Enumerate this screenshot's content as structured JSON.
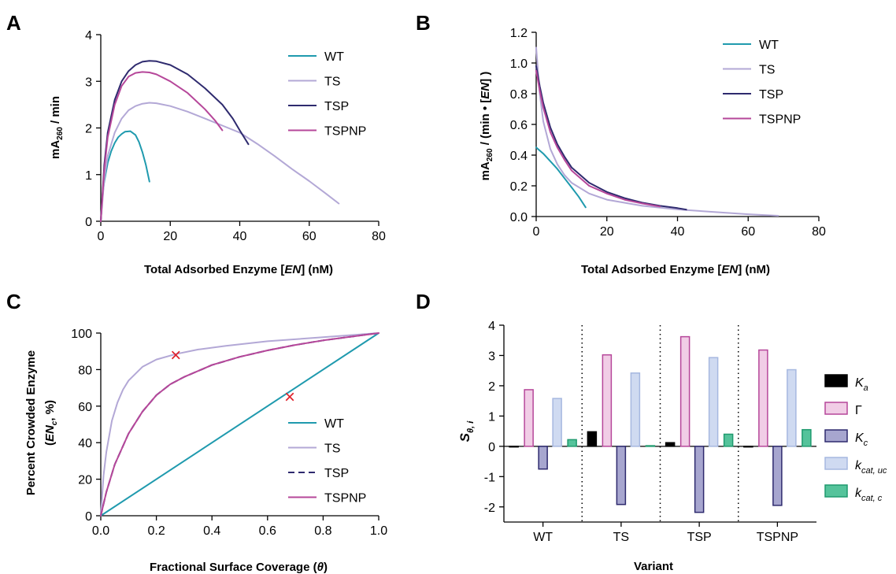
{
  "panels": {
    "A": {
      "letter": "A"
    },
    "B": {
      "letter": "B"
    },
    "C": {
      "letter": "C"
    },
    "D": {
      "letter": "D"
    }
  },
  "colors": {
    "WT": "#1f9aae",
    "TS": "#b3a8d6",
    "TSP": "#2e2a6e",
    "TSPNP": "#b6479a",
    "marker": "#e0202a",
    "Ka": "#000000",
    "Gamma": "#b6479a",
    "Kc": "#2e2a6e",
    "kcat_uc": "#a6b8e0",
    "kcat_c": "#1f9a6e"
  },
  "chart_data": [
    {
      "panel": "A",
      "type": "line",
      "xlabel": "Total Adsorbed Enzyme [EN] (nM)",
      "ylabel": "mA260 / min",
      "xlim": [
        0,
        80
      ],
      "ylim": [
        0,
        4
      ],
      "xticks": [
        0,
        20,
        40,
        60,
        80
      ],
      "yticks": [
        0,
        1,
        2,
        3,
        4
      ],
      "legend_position": "top-right",
      "series": [
        {
          "name": "WT",
          "color_key": "WT",
          "points": [
            [
              0,
              0
            ],
            [
              0.5,
              0.55
            ],
            [
              1,
              0.85
            ],
            [
              2,
              1.25
            ],
            [
              3,
              1.5
            ],
            [
              4,
              1.68
            ],
            [
              5,
              1.8
            ],
            [
              6,
              1.87
            ],
            [
              7,
              1.92
            ],
            [
              8.5,
              1.93
            ],
            [
              10,
              1.85
            ],
            [
              11,
              1.7
            ],
            [
              12,
              1.48
            ],
            [
              13,
              1.2
            ],
            [
              14,
              0.85
            ]
          ]
        },
        {
          "name": "TS",
          "color_key": "TS",
          "points": [
            [
              0,
              0
            ],
            [
              1,
              0.9
            ],
            [
              2,
              1.4
            ],
            [
              4,
              1.9
            ],
            [
              6,
              2.2
            ],
            [
              8,
              2.38
            ],
            [
              10,
              2.47
            ],
            [
              12,
              2.52
            ],
            [
              14,
              2.54
            ],
            [
              16,
              2.53
            ],
            [
              20,
              2.47
            ],
            [
              25,
              2.35
            ],
            [
              30,
              2.2
            ],
            [
              35,
              2.05
            ],
            [
              40,
              1.9
            ],
            [
              45,
              1.66
            ],
            [
              50,
              1.4
            ],
            [
              55,
              1.12
            ],
            [
              60,
              0.86
            ],
            [
              65,
              0.58
            ],
            [
              68.5,
              0.38
            ]
          ]
        },
        {
          "name": "TSP",
          "color_key": "TSP",
          "points": [
            [
              0,
              0
            ],
            [
              1,
              1.2
            ],
            [
              2,
              1.9
            ],
            [
              4,
              2.6
            ],
            [
              6,
              3.0
            ],
            [
              8,
              3.22
            ],
            [
              10,
              3.35
            ],
            [
              12,
              3.42
            ],
            [
              14,
              3.44
            ],
            [
              16,
              3.43
            ],
            [
              20,
              3.35
            ],
            [
              25,
              3.15
            ],
            [
              30,
              2.85
            ],
            [
              35,
              2.5
            ],
            [
              38,
              2.2
            ],
            [
              40,
              1.95
            ],
            [
              42.5,
              1.65
            ]
          ]
        },
        {
          "name": "TSPNP",
          "color_key": "TSPNP",
          "points": [
            [
              0,
              0
            ],
            [
              1,
              1.1
            ],
            [
              2,
              1.8
            ],
            [
              4,
              2.5
            ],
            [
              6,
              2.9
            ],
            [
              8,
              3.1
            ],
            [
              10,
              3.18
            ],
            [
              12,
              3.2
            ],
            [
              14,
              3.19
            ],
            [
              16,
              3.15
            ],
            [
              20,
              3.0
            ],
            [
              25,
              2.75
            ],
            [
              30,
              2.4
            ],
            [
              33,
              2.15
            ],
            [
              35,
              1.95
            ]
          ]
        }
      ]
    },
    {
      "panel": "B",
      "type": "line",
      "xlabel": "Total Adsorbed Enzyme [EN] (nM)",
      "ylabel": "mA260 / (min • [EN])",
      "xlim": [
        0,
        80
      ],
      "ylim": [
        0,
        1.2
      ],
      "xticks": [
        0,
        20,
        40,
        60,
        80
      ],
      "yticks": [
        0.0,
        0.2,
        0.4,
        0.6,
        0.8,
        1.0,
        1.2
      ],
      "legend_position": "top-right",
      "series": [
        {
          "name": "WT",
          "color_key": "WT",
          "points": [
            [
              0,
              0.45
            ],
            [
              2,
              0.41
            ],
            [
              4,
              0.36
            ],
            [
              6,
              0.31
            ],
            [
              8,
              0.25
            ],
            [
              10,
              0.19
            ],
            [
              12,
              0.13
            ],
            [
              14,
              0.06
            ]
          ]
        },
        {
          "name": "TS",
          "color_key": "TS",
          "points": [
            [
              0,
              1.1
            ],
            [
              1,
              0.8
            ],
            [
              2,
              0.62
            ],
            [
              4,
              0.44
            ],
            [
              6,
              0.34
            ],
            [
              8,
              0.27
            ],
            [
              10,
              0.22
            ],
            [
              15,
              0.15
            ],
            [
              20,
              0.11
            ],
            [
              30,
              0.07
            ],
            [
              40,
              0.046
            ],
            [
              50,
              0.03
            ],
            [
              60,
              0.015
            ],
            [
              68.5,
              0.005
            ]
          ]
        },
        {
          "name": "TSP",
          "color_key": "TSP",
          "points": [
            [
              0,
              0.98
            ],
            [
              1,
              0.85
            ],
            [
              2,
              0.74
            ],
            [
              4,
              0.58
            ],
            [
              6,
              0.47
            ],
            [
              8,
              0.39
            ],
            [
              10,
              0.32
            ],
            [
              15,
              0.22
            ],
            [
              20,
              0.16
            ],
            [
              25,
              0.12
            ],
            [
              30,
              0.09
            ],
            [
              35,
              0.07
            ],
            [
              40,
              0.055
            ],
            [
              42.5,
              0.045
            ]
          ]
        },
        {
          "name": "TSPNP",
          "color_key": "TSPNP",
          "points": [
            [
              0,
              0.95
            ],
            [
              1,
              0.82
            ],
            [
              2,
              0.71
            ],
            [
              4,
              0.55
            ],
            [
              6,
              0.45
            ],
            [
              8,
              0.37
            ],
            [
              10,
              0.3
            ],
            [
              15,
              0.2
            ],
            [
              20,
              0.15
            ],
            [
              25,
              0.11
            ],
            [
              30,
              0.085
            ],
            [
              35,
              0.065
            ]
          ]
        }
      ]
    },
    {
      "panel": "C",
      "type": "line",
      "xlabel": "Fractional Surface Coverage (θ)",
      "ylabel": "Percent Crowded Enzyme (ENc, %)",
      "xlim": [
        0,
        1
      ],
      "ylim": [
        0,
        100
      ],
      "xticks": [
        0.0,
        0.2,
        0.4,
        0.6,
        0.8,
        1.0
      ],
      "yticks": [
        0,
        20,
        40,
        60,
        80,
        100
      ],
      "legend_position": "bottom-right",
      "series": [
        {
          "name": "WT",
          "color_key": "WT",
          "dashed": false,
          "points": [
            [
              0,
              0
            ],
            [
              1,
              100
            ]
          ]
        },
        {
          "name": "TS",
          "color_key": "TS",
          "dashed": false,
          "points": [
            [
              0,
              0
            ],
            [
              0.01,
              22
            ],
            [
              0.02,
              35
            ],
            [
              0.04,
              52
            ],
            [
              0.06,
              62
            ],
            [
              0.08,
              69
            ],
            [
              0.1,
              74
            ],
            [
              0.15,
              81.5
            ],
            [
              0.2,
              85.5
            ],
            [
              0.27,
              88.5
            ],
            [
              0.35,
              91
            ],
            [
              0.45,
              93
            ],
            [
              0.6,
              95.5
            ],
            [
              0.8,
              97.7
            ],
            [
              1,
              100
            ]
          ]
        },
        {
          "name": "TSP",
          "color_key": "TSP",
          "dashed": true,
          "points": [
            [
              0,
              0
            ],
            [
              0.02,
              13
            ],
            [
              0.05,
              28
            ],
            [
              0.1,
              45
            ],
            [
              0.15,
              57
            ],
            [
              0.2,
              66
            ],
            [
              0.25,
              72
            ],
            [
              0.3,
              76
            ],
            [
              0.4,
              82.5
            ],
            [
              0.5,
              87
            ],
            [
              0.6,
              90.5
            ],
            [
              0.7,
              93.5
            ],
            [
              0.8,
              96
            ],
            [
              0.9,
              98
            ],
            [
              1,
              100
            ]
          ]
        },
        {
          "name": "TSPNP",
          "color_key": "TSPNP",
          "dashed": false,
          "points": [
            [
              0,
              0
            ],
            [
              0.02,
              13
            ],
            [
              0.05,
              28
            ],
            [
              0.1,
              45
            ],
            [
              0.15,
              57
            ],
            [
              0.2,
              66
            ],
            [
              0.25,
              72
            ],
            [
              0.3,
              76
            ],
            [
              0.4,
              82.5
            ],
            [
              0.5,
              87
            ],
            [
              0.6,
              90.5
            ],
            [
              0.7,
              93.5
            ],
            [
              0.8,
              96
            ],
            [
              0.9,
              98
            ],
            [
              1,
              100
            ]
          ]
        }
      ],
      "markers": [
        {
          "x": 0.27,
          "y": 88,
          "symbol": "×"
        },
        {
          "x": 0.68,
          "y": 65,
          "symbol": "×"
        }
      ]
    },
    {
      "panel": "D",
      "type": "bar",
      "xlabel": "Variant",
      "ylabel": "Sθ, i",
      "categories": [
        "WT",
        "TS",
        "TSP",
        "TSPNP"
      ],
      "ylim": [
        -2.5,
        4
      ],
      "yticks": [
        -2,
        -1,
        0,
        1,
        2,
        3,
        4
      ],
      "legend_position": "right",
      "series": [
        {
          "name": "Ka",
          "color_key": "Ka",
          "values": [
            0,
            0.48,
            0.12,
            0
          ]
        },
        {
          "name": "Γ",
          "color_key": "Gamma",
          "values": [
            1.87,
            3.02,
            3.62,
            3.18
          ]
        },
        {
          "name": "Kc",
          "color_key": "Kc",
          "values": [
            -0.75,
            -1.92,
            -2.18,
            -1.95
          ]
        },
        {
          "name": "kcat, uc",
          "color_key": "kcat_uc",
          "values": [
            1.58,
            2.42,
            2.93,
            2.53
          ]
        },
        {
          "name": "kcat, c",
          "color_key": "kcat_c",
          "values": [
            0.22,
            0.02,
            0.4,
            0.55
          ]
        }
      ]
    }
  ]
}
